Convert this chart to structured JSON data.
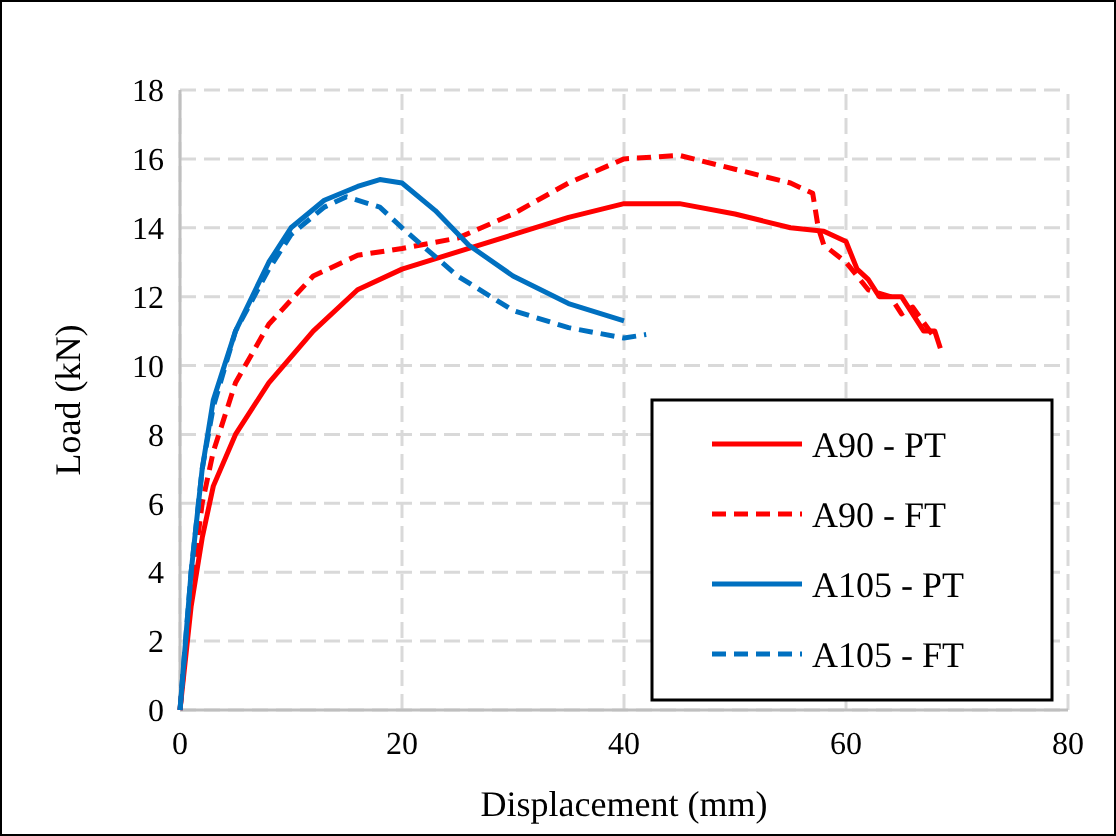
{
  "chart_data": {
    "type": "line",
    "xlabel": "Displacement (mm)",
    "ylabel": "Load (kN)",
    "xlim": [
      0,
      80
    ],
    "xticks": [
      0,
      20,
      40,
      60,
      80
    ],
    "ylim": [
      0,
      18
    ],
    "yticks": [
      0,
      2,
      4,
      6,
      8,
      10,
      12,
      14,
      16,
      18
    ],
    "grid": true,
    "legend": "bottom right",
    "marker": "none",
    "series": [
      {
        "name": "A90 - PT",
        "color": "#ff0000",
        "line_style": "solid",
        "x": [
          0,
          1,
          2,
          3,
          5,
          8,
          12,
          16,
          20,
          25,
          30,
          35,
          40,
          45,
          50,
          55,
          58,
          60,
          61,
          62,
          63,
          65,
          66,
          67,
          68,
          68.5
        ],
        "values": [
          0,
          3,
          5,
          6.5,
          8,
          9.5,
          11,
          12.2,
          12.8,
          13.3,
          13.8,
          14.3,
          14.7,
          14.7,
          14.4,
          14,
          13.9,
          13.6,
          12.8,
          12.5,
          12,
          12,
          11.5,
          11,
          11,
          10.5
        ]
      },
      {
        "name": "A90 - FT",
        "color": "#ff0000",
        "line_style": "dashed",
        "x": [
          0,
          1,
          2,
          3,
          5,
          8,
          12,
          16,
          20,
          25,
          30,
          35,
          40,
          45,
          50,
          55,
          57,
          57.5,
          58,
          60,
          62,
          64,
          65,
          66,
          68
        ],
        "values": [
          0,
          3.5,
          6,
          7.5,
          9.5,
          11.2,
          12.6,
          13.2,
          13.4,
          13.7,
          14.4,
          15.3,
          16,
          16.1,
          15.7,
          15.3,
          15,
          14,
          13.5,
          13,
          12.2,
          12,
          11.5,
          11.7,
          10.8
        ]
      },
      {
        "name": "A105 - PT",
        "color": "#0070c0",
        "line_style": "solid",
        "x": [
          0,
          1,
          2,
          3,
          5,
          8,
          10,
          13,
          16,
          18,
          20,
          23,
          26,
          30,
          35,
          40
        ],
        "values": [
          0,
          4,
          7,
          9,
          11,
          13,
          14,
          14.8,
          15.2,
          15.4,
          15.3,
          14.5,
          13.5,
          12.6,
          11.8,
          11.3
        ]
      },
      {
        "name": "A105 - FT",
        "color": "#0070c0",
        "line_style": "dashed",
        "x": [
          0,
          1,
          2,
          3,
          5,
          8,
          10,
          13,
          15,
          18,
          20,
          25,
          30,
          35,
          40,
          42
        ],
        "values": [
          0,
          4,
          7,
          8.8,
          11,
          12.8,
          13.8,
          14.6,
          14.9,
          14.6,
          14,
          12.6,
          11.6,
          11.1,
          10.8,
          10.9
        ]
      }
    ]
  }
}
